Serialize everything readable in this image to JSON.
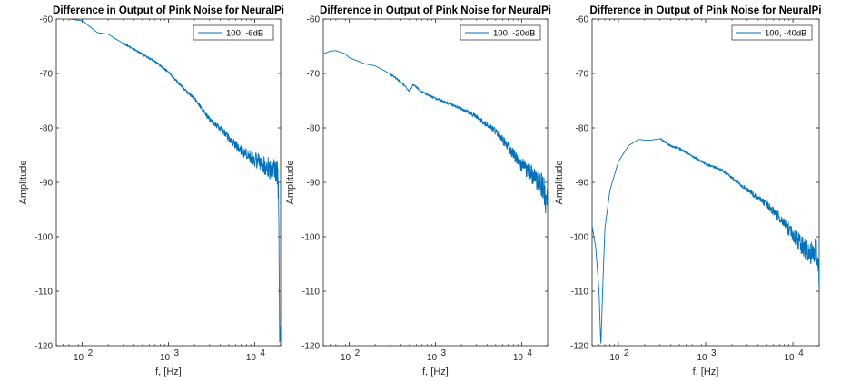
{
  "chart_data": [
    {
      "type": "line",
      "title": "Difference in Output of Pink Noise for NeuralPi",
      "xlabel": "f, [Hz]",
      "ylabel": "Amplitude",
      "xscale": "log",
      "xlim": [
        50,
        20000
      ],
      "ylim": [
        -120,
        -60
      ],
      "yticks": [
        -60,
        -70,
        -80,
        -90,
        -100,
        -110,
        -120
      ],
      "xticks": [
        100,
        1000,
        10000
      ],
      "xtick_labels": [
        {
          "base": "10",
          "exp": "2"
        },
        {
          "base": "10",
          "exp": "3"
        },
        {
          "base": "10",
          "exp": "4"
        }
      ],
      "grid": false,
      "legend_position": "top-right",
      "series": [
        {
          "name": "100, -6dB",
          "color": "#0072BD",
          "x": [
            50,
            70,
            100,
            150,
            200,
            300,
            400,
            500,
            700,
            1000,
            1500,
            2000,
            3000,
            4000,
            5000,
            7000,
            10000,
            12000,
            15000,
            17000,
            18500,
            19000,
            19500,
            20000
          ],
          "y": [
            -60,
            -60,
            -60.3,
            -62.5,
            -62.8,
            -64.5,
            -65.6,
            -66.5,
            -67.8,
            -69.8,
            -72.8,
            -74.6,
            -78.4,
            -80.2,
            -81.8,
            -84.2,
            -85.8,
            -86.5,
            -87.5,
            -87.6,
            -88.5,
            -93,
            -120,
            -118
          ]
        },
        {
          "name": "100, -20dB",
          "color": "#0072BD",
          "x": [
            50,
            60,
            70,
            90,
            100,
            150,
            200,
            300,
            400,
            500,
            550,
            700,
            1000,
            1500,
            2000,
            3000,
            5000,
            7000,
            10000,
            15000,
            18000,
            19500,
            20000
          ],
          "y": [
            -66.4,
            -65.9,
            -65.8,
            -66.4,
            -67.1,
            -68.2,
            -68.6,
            -70.1,
            -71.6,
            -73.3,
            -72.0,
            -73.4,
            -74.6,
            -75.6,
            -76.5,
            -77.9,
            -80.7,
            -83.5,
            -86.8,
            -89.3,
            -91.3,
            -94.7,
            -91.0
          ]
        },
        {
          "name": "100, -40dB",
          "color": "#0072BD",
          "x": [
            50,
            55,
            60,
            63,
            66,
            70,
            80,
            100,
            130,
            170,
            220,
            300,
            400,
            500,
            700,
            1000,
            1500,
            2000,
            3000,
            5000,
            7000,
            10000,
            12000,
            15000,
            17000,
            19000,
            19500,
            20000
          ],
          "y": [
            -98,
            -102,
            -110,
            -120,
            -110,
            -98.5,
            -91.5,
            -86.2,
            -83.3,
            -82.1,
            -82.3,
            -82.0,
            -83.3,
            -83.8,
            -85.2,
            -86.6,
            -87.7,
            -89.1,
            -91.4,
            -94.1,
            -96.5,
            -99.5,
            -101.2,
            -102.8,
            -103.3,
            -102.5,
            -105,
            -107.5
          ]
        }
      ]
    }
  ]
}
